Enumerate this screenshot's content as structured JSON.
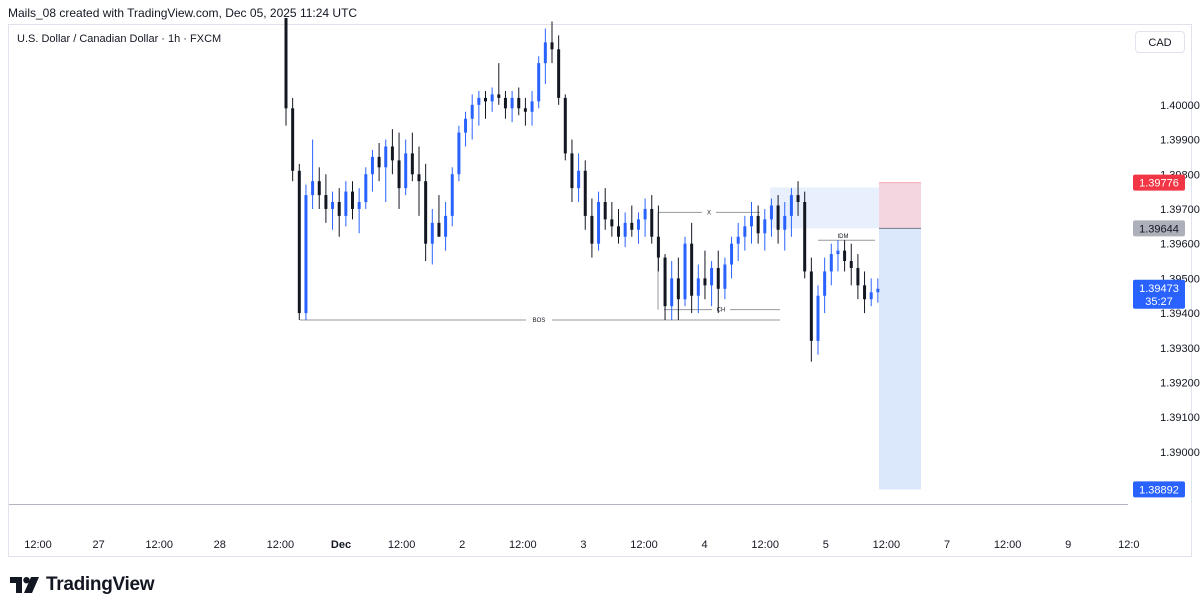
{
  "header": {
    "attribution": "Mails_08 created with TradingView.com, Dec 05, 2025 11:24 UTC"
  },
  "symbol": {
    "title": "U.S. Dollar / Canadian Dollar · 1h · FXCM"
  },
  "currency_button": "CAD",
  "brand": {
    "name": "TradingView",
    "icon": "tradingview-logo-icon"
  },
  "colors": {
    "up": "#2962ff",
    "down": "#131722",
    "stop": "#f23645",
    "entry": "#787b86",
    "target": "#2962ff",
    "target_zone": "#dbe7fb",
    "stop_zone": "#f3d6df",
    "ob_zone": "#e8f0fd"
  },
  "chart_data": {
    "type": "candlestick",
    "instrument": "U.S. Dollar / Canadian Dollar",
    "timeframe": "1h",
    "source": "FXCM",
    "ylim": [
      1.3885,
      1.4023
    ],
    "y_ticks": [
      "1.40000",
      "1.39900",
      "1.39800",
      "1.39700",
      "1.39600",
      "1.39500",
      "1.39400",
      "1.39300",
      "1.39200",
      "1.39100",
      "1.39000"
    ],
    "x_ticks": [
      "12:00",
      "27",
      "12:00",
      "28",
      "12:00",
      "Dec",
      "12:00",
      "2",
      "12:00",
      "3",
      "12:00",
      "4",
      "12:00",
      "5",
      "12:00",
      "7",
      "12:00",
      "9",
      "12:0"
    ],
    "price_labels": [
      {
        "value": "1.39776",
        "kind": "stop"
      },
      {
        "value": "1.39644",
        "kind": "entry"
      },
      {
        "value": "1.39473",
        "kind": "last",
        "countdown": "35:27"
      },
      {
        "value": "1.38892",
        "kind": "target"
      }
    ],
    "annotations": [
      {
        "text": "BOS",
        "price": 1.3938
      },
      {
        "text": "X",
        "price": 1.3969
      },
      {
        "text": "CH",
        "price": 1.3941
      },
      {
        "text": "IDM",
        "price": 1.3961
      }
    ],
    "position": {
      "entry": 1.39644,
      "stop": 1.39776,
      "target": 1.38892
    },
    "order_block": {
      "top": 1.39762,
      "bottom": 1.39644
    },
    "candles": [
      [
        1.4025,
        1.4025,
        1.3994,
        1.3999
      ],
      [
        1.3999,
        1.4002,
        1.3978,
        1.3981
      ],
      [
        1.3981,
        1.3983,
        1.3938,
        1.394
      ],
      [
        1.394,
        1.3977,
        1.3938,
        1.3974
      ],
      [
        1.3974,
        1.399,
        1.397,
        1.3978
      ],
      [
        1.3978,
        1.3982,
        1.397,
        1.3974
      ],
      [
        1.3974,
        1.398,
        1.3966,
        1.397
      ],
      [
        1.397,
        1.3975,
        1.3964,
        1.3972
      ],
      [
        1.3972,
        1.3976,
        1.3962,
        1.3968
      ],
      [
        1.3968,
        1.3978,
        1.3965,
        1.3975
      ],
      [
        1.3975,
        1.3978,
        1.3967,
        1.397
      ],
      [
        1.397,
        1.3976,
        1.3963,
        1.3972
      ],
      [
        1.3972,
        1.3982,
        1.397,
        1.398
      ],
      [
        1.398,
        1.3987,
        1.3975,
        1.3985
      ],
      [
        1.3985,
        1.3989,
        1.3978,
        1.3982
      ],
      [
        1.3982,
        1.399,
        1.3972,
        1.3988
      ],
      [
        1.3988,
        1.3993,
        1.398,
        1.3984
      ],
      [
        1.3984,
        1.3992,
        1.397,
        1.3976
      ],
      [
        1.3976,
        1.399,
        1.3974,
        1.3986
      ],
      [
        1.3986,
        1.3992,
        1.3978,
        1.398
      ],
      [
        1.398,
        1.3988,
        1.3968,
        1.3978
      ],
      [
        1.3978,
        1.3983,
        1.3955,
        1.396
      ],
      [
        1.396,
        1.397,
        1.3954,
        1.3966
      ],
      [
        1.3966,
        1.3974,
        1.3962,
        1.3962
      ],
      [
        1.3962,
        1.3972,
        1.3958,
        1.3968
      ],
      [
        1.3968,
        1.3982,
        1.3965,
        1.398
      ],
      [
        1.398,
        1.3994,
        1.3978,
        1.3992
      ],
      [
        1.3992,
        1.3998,
        1.3988,
        1.3996
      ],
      [
        1.3996,
        1.4003,
        1.399,
        1.4
      ],
      [
        1.4,
        1.4004,
        1.3994,
        1.4002
      ],
      [
        1.4002,
        1.4004,
        1.3996,
        1.4001
      ],
      [
        1.4001,
        1.4005,
        1.3998,
        1.4003
      ],
      [
        1.4003,
        1.4012,
        1.4,
        1.4002
      ],
      [
        1.4002,
        1.4004,
        1.3996,
        1.3999
      ],
      [
        1.3999,
        1.4004,
        1.3995,
        1.4002
      ],
      [
        1.4002,
        1.4005,
        1.3997,
        1.3999
      ],
      [
        1.3999,
        1.4002,
        1.3994,
        1.3998
      ],
      [
        1.3998,
        1.4004,
        1.3994,
        1.4001
      ],
      [
        1.4001,
        1.4014,
        1.3999,
        1.4012
      ],
      [
        1.4012,
        1.4022,
        1.4006,
        1.4018
      ],
      [
        1.4018,
        1.4024,
        1.4012,
        1.4016
      ],
      [
        1.4016,
        1.402,
        1.4,
        1.4002
      ],
      [
        1.4002,
        1.4003,
        1.3984,
        1.3986
      ],
      [
        1.3986,
        1.399,
        1.3972,
        1.3976
      ],
      [
        1.3976,
        1.3986,
        1.3972,
        1.3981
      ],
      [
        1.3981,
        1.3984,
        1.3964,
        1.3968
      ],
      [
        1.3968,
        1.3973,
        1.3956,
        1.396
      ],
      [
        1.396,
        1.3975,
        1.3958,
        1.3972
      ],
      [
        1.3972,
        1.3976,
        1.3964,
        1.3967
      ],
      [
        1.3967,
        1.3972,
        1.3962,
        1.3965
      ],
      [
        1.3965,
        1.397,
        1.396,
        1.3962
      ],
      [
        1.3962,
        1.3969,
        1.3959,
        1.3966
      ],
      [
        1.3966,
        1.3971,
        1.3962,
        1.3964
      ],
      [
        1.3964,
        1.3969,
        1.396,
        1.3967
      ],
      [
        1.3967,
        1.3973,
        1.3962,
        1.397
      ],
      [
        1.397,
        1.3974,
        1.396,
        1.3962
      ],
      [
        1.3962,
        1.3971,
        1.3952,
        1.3956
      ],
      [
        1.3956,
        1.3957,
        1.3938,
        1.3942
      ],
      [
        1.3942,
        1.3955,
        1.3938,
        1.395
      ],
      [
        1.395,
        1.3956,
        1.3938,
        1.3944
      ],
      [
        1.3944,
        1.3962,
        1.3942,
        1.396
      ],
      [
        1.396,
        1.3966,
        1.394,
        1.3945
      ],
      [
        1.3945,
        1.3954,
        1.394,
        1.395
      ],
      [
        1.395,
        1.3958,
        1.3944,
        1.3948
      ],
      [
        1.3948,
        1.3955,
        1.3942,
        1.3953
      ],
      [
        1.3953,
        1.3958,
        1.394,
        1.3947
      ],
      [
        1.3947,
        1.3956,
        1.3944,
        1.3954
      ],
      [
        1.3954,
        1.3962,
        1.395,
        1.396
      ],
      [
        1.396,
        1.3966,
        1.3955,
        1.3962
      ],
      [
        1.3962,
        1.3968,
        1.3958,
        1.3965
      ],
      [
        1.3965,
        1.3972,
        1.396,
        1.3968
      ],
      [
        1.3968,
        1.3971,
        1.396,
        1.3963
      ],
      [
        1.3963,
        1.397,
        1.3958,
        1.3967
      ],
      [
        1.3967,
        1.3973,
        1.3962,
        1.3971
      ],
      [
        1.3971,
        1.3974,
        1.396,
        1.3964
      ],
      [
        1.3964,
        1.3972,
        1.3958,
        1.3968
      ],
      [
        1.3968,
        1.3976,
        1.3962,
        1.3974
      ],
      [
        1.3974,
        1.3978,
        1.3968,
        1.3972
      ],
      [
        1.3972,
        1.3975,
        1.395,
        1.3952
      ],
      [
        1.3952,
        1.3956,
        1.3926,
        1.3932
      ],
      [
        1.3932,
        1.3948,
        1.3928,
        1.3945
      ],
      [
        1.3945,
        1.3956,
        1.394,
        1.3952
      ],
      [
        1.3952,
        1.396,
        1.3948,
        1.3957
      ],
      [
        1.3957,
        1.3961,
        1.3952,
        1.3958
      ],
      [
        1.3958,
        1.3961,
        1.3952,
        1.3955
      ],
      [
        1.3955,
        1.396,
        1.3948,
        1.3953
      ],
      [
        1.3953,
        1.3957,
        1.3944,
        1.3948
      ],
      [
        1.3948,
        1.3952,
        1.394,
        1.3944
      ],
      [
        1.3944,
        1.395,
        1.3942,
        1.3946
      ],
      [
        1.3946,
        1.395,
        1.3943,
        1.3947
      ]
    ]
  }
}
